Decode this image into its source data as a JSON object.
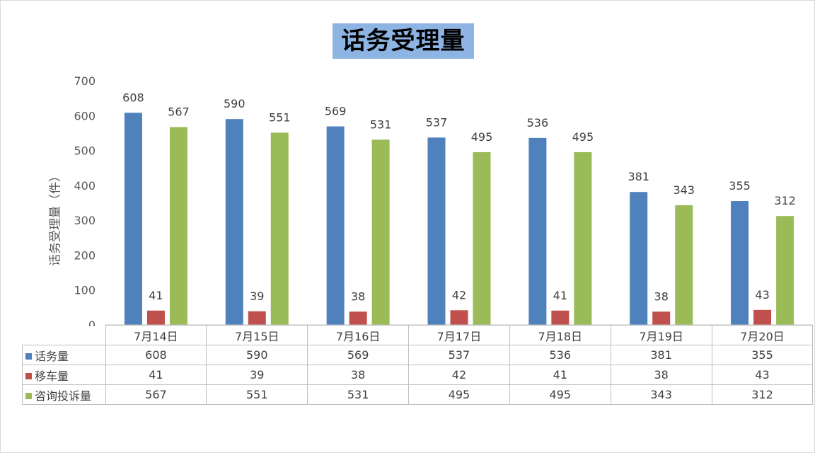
{
  "chart_data": {
    "type": "bar",
    "title": "话务受理量",
    "ylabel": "话务受理量（件）",
    "xlabel": "",
    "ylim": [
      0,
      700
    ],
    "yticks": [
      0,
      100,
      200,
      300,
      400,
      500,
      600,
      700
    ],
    "categories": [
      "7月14日",
      "7月15日",
      "7月16日",
      "7月17日",
      "7月18日",
      "7月19日",
      "7月20日"
    ],
    "series": [
      {
        "name": "话务量",
        "color": "#4f81bd",
        "values": [
          608,
          590,
          569,
          537,
          536,
          381,
          355
        ]
      },
      {
        "name": "移车量",
        "color": "#c0504d",
        "values": [
          41,
          39,
          38,
          42,
          41,
          38,
          43
        ]
      },
      {
        "name": "咨询投诉量",
        "color": "#9bbb59",
        "values": [
          567,
          551,
          531,
          495,
          495,
          343,
          312
        ]
      }
    ],
    "grid": false,
    "legend": "data table below chart"
  }
}
